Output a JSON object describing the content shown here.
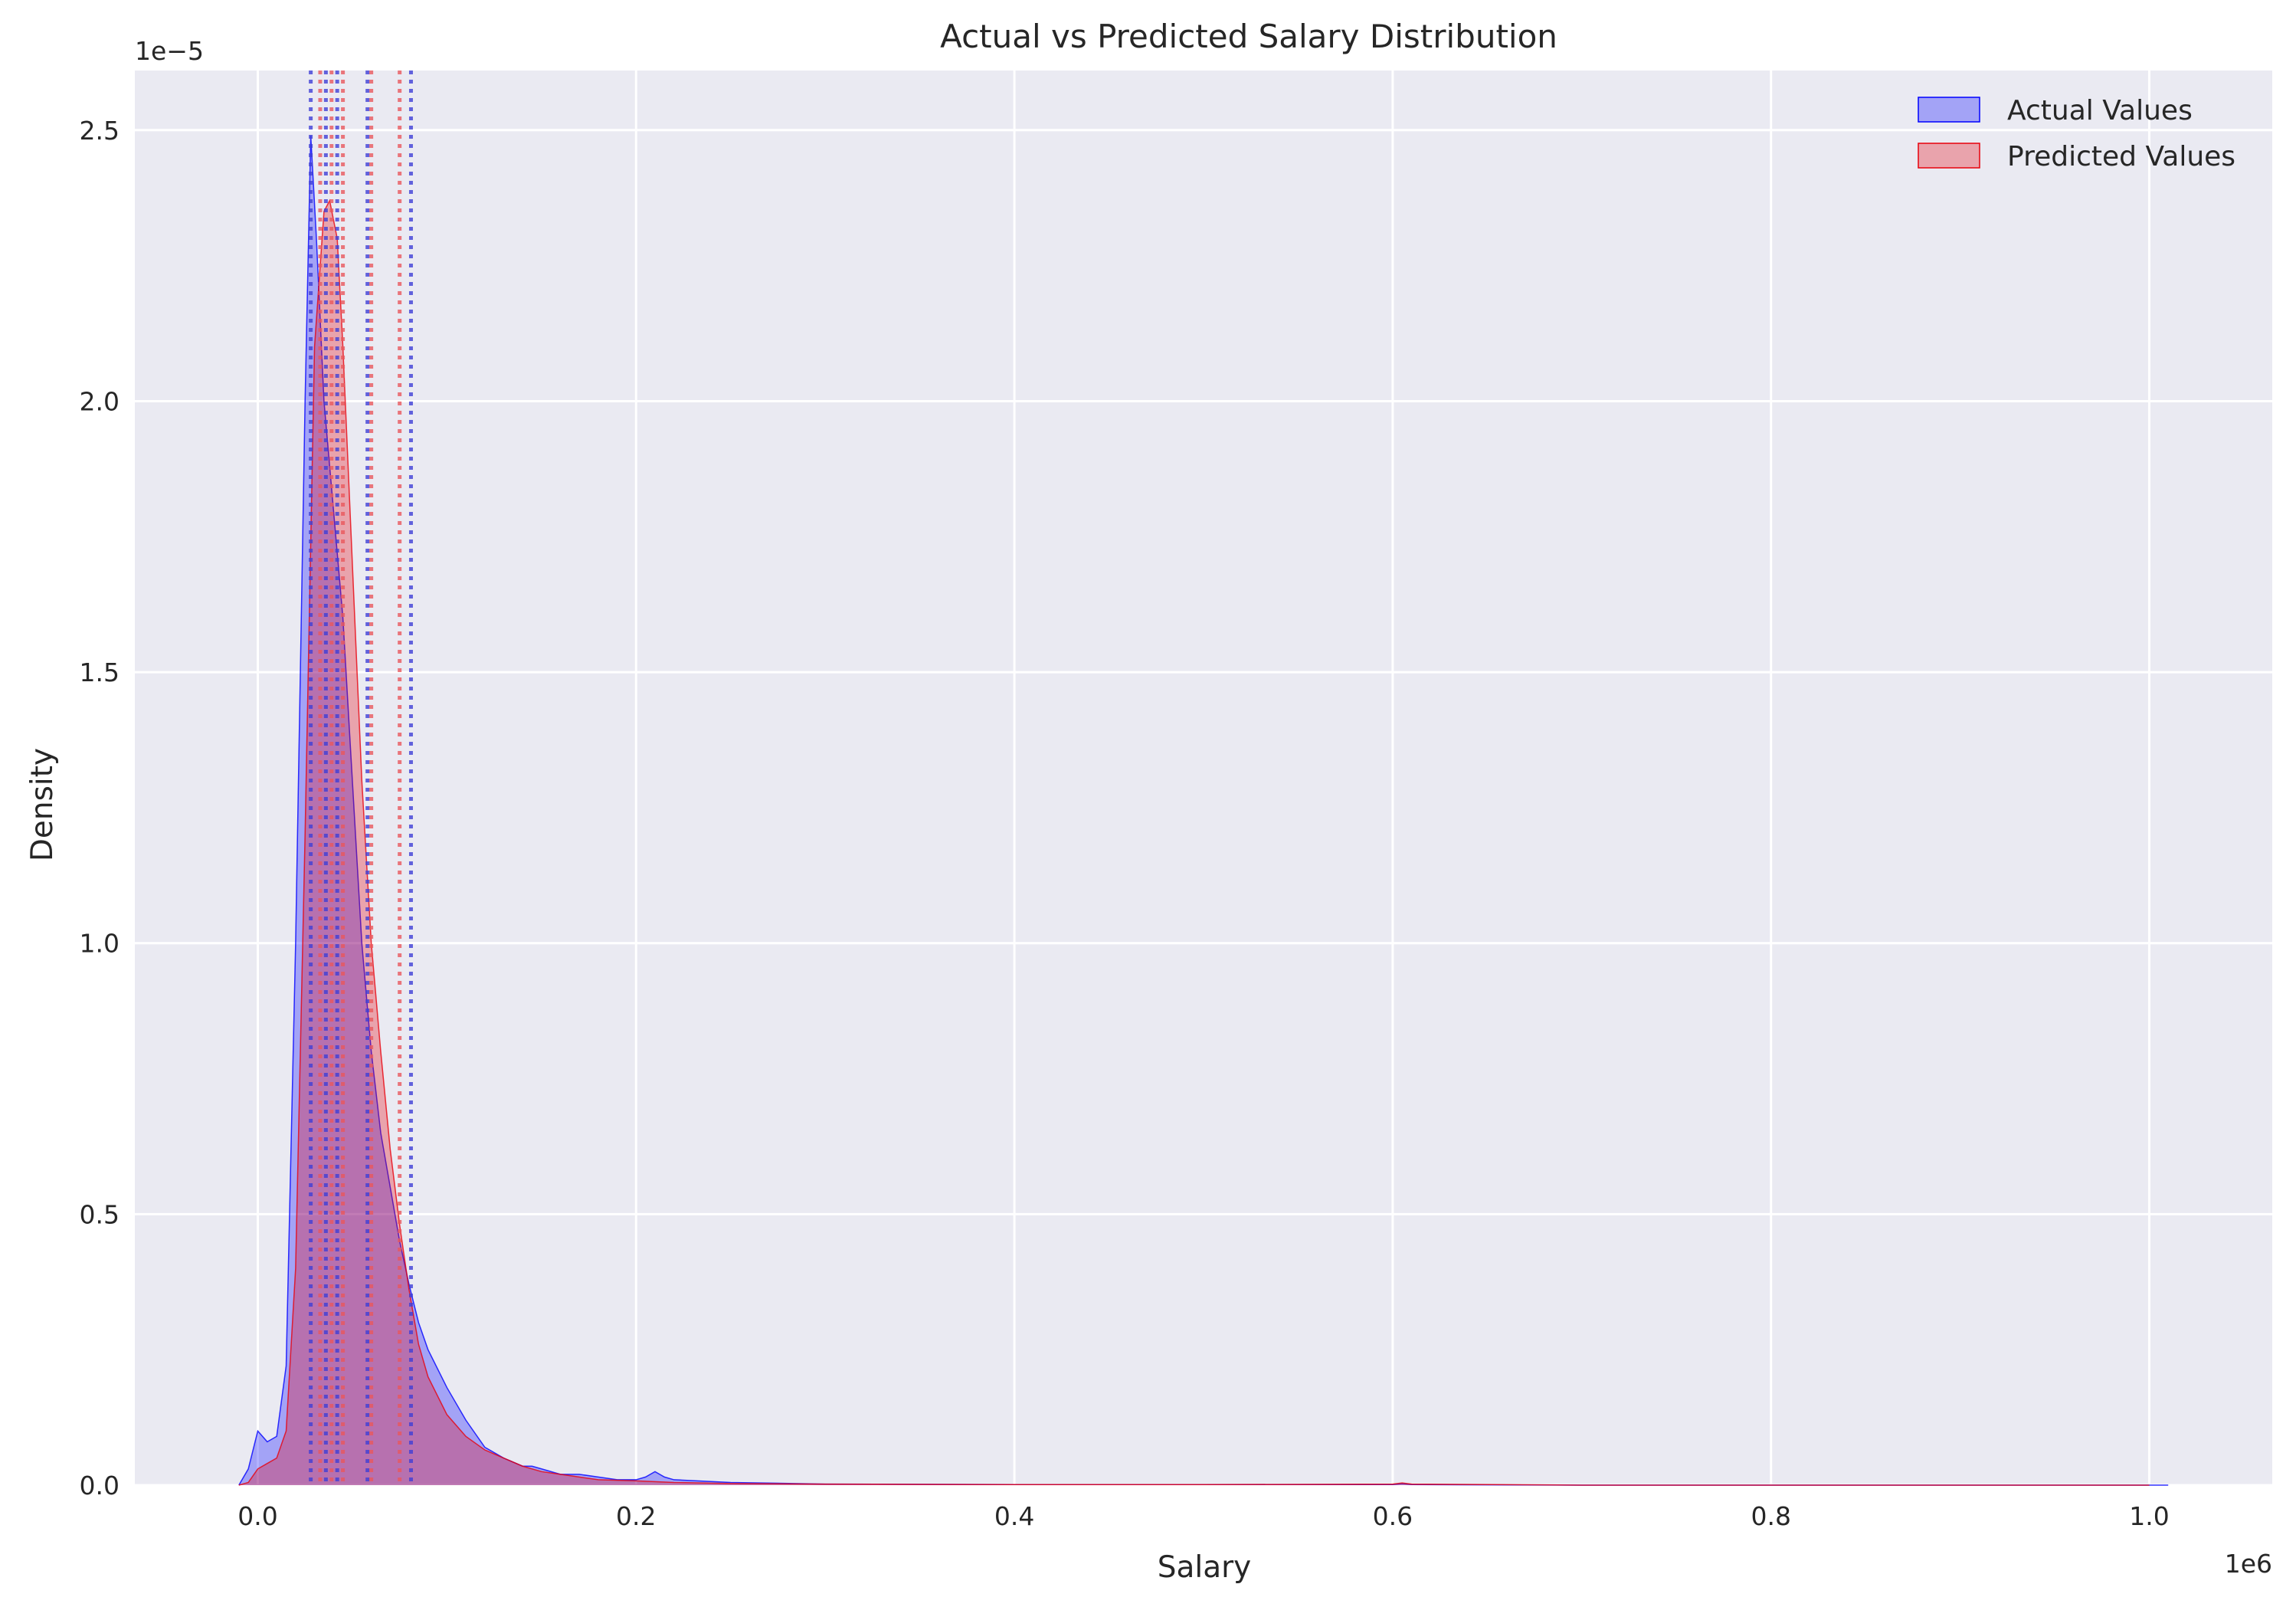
{
  "chart_data": {
    "type": "area",
    "title": "Actual vs Predicted Salary Distribution",
    "xlabel": "Salary",
    "ylabel": "Density",
    "x_offset_text": "1e6",
    "y_offset_text": "1e−5",
    "xlim": [
      -0.065,
      1.065
    ],
    "ylim": [
      0,
      2.61
    ],
    "x_scale_factor": 1000000,
    "y_scale_factor": 1e-05,
    "x_ticks": [
      0.0,
      0.2,
      0.4,
      0.6,
      0.8,
      1.0
    ],
    "x_tick_labels": [
      "0.0",
      "0.2",
      "0.4",
      "0.6",
      "0.8",
      "1.0"
    ],
    "y_ticks": [
      0.0,
      0.5,
      1.0,
      1.5,
      2.0,
      2.5
    ],
    "y_tick_labels": [
      "0.0",
      "0.5",
      "1.0",
      "1.5",
      "2.0",
      "2.5"
    ],
    "grid": true,
    "legend_position": "top-right",
    "series": [
      {
        "name": "Actual Values",
        "color": "#0000ff",
        "fill": "#b2b1f2",
        "x": [
          -0.01,
          -0.005,
          0.0,
          0.005,
          0.01,
          0.015,
          0.02,
          0.025,
          0.028,
          0.031,
          0.035,
          0.04,
          0.045,
          0.05,
          0.055,
          0.06,
          0.065,
          0.07,
          0.075,
          0.08,
          0.085,
          0.09,
          0.1,
          0.11,
          0.12,
          0.13,
          0.14,
          0.145,
          0.15,
          0.16,
          0.17,
          0.18,
          0.19,
          0.2,
          0.205,
          0.21,
          0.215,
          0.22,
          0.25,
          0.3,
          0.4,
          0.5,
          0.6,
          0.605,
          0.61,
          0.7,
          0.8,
          0.9,
          1.0,
          1.01
        ],
        "y": [
          0.0,
          0.03,
          0.1,
          0.08,
          0.09,
          0.22,
          1.0,
          2.0,
          2.49,
          2.3,
          2.0,
          1.8,
          1.6,
          1.3,
          1.0,
          0.8,
          0.65,
          0.55,
          0.45,
          0.37,
          0.3,
          0.25,
          0.18,
          0.12,
          0.07,
          0.05,
          0.035,
          0.035,
          0.03,
          0.02,
          0.02,
          0.015,
          0.01,
          0.01,
          0.015,
          0.025,
          0.015,
          0.01,
          0.005,
          0.002,
          0.001,
          0.001,
          0.001,
          0.003,
          0.001,
          0.0,
          0.0,
          0.0,
          0.0,
          0.0
        ]
      },
      {
        "name": "Predicted Values",
        "color": "#e8000b",
        "fill": "#f2a5a8",
        "x": [
          -0.01,
          -0.005,
          0.0,
          0.005,
          0.01,
          0.015,
          0.02,
          0.025,
          0.03,
          0.035,
          0.038,
          0.042,
          0.045,
          0.05,
          0.055,
          0.06,
          0.065,
          0.07,
          0.075,
          0.08,
          0.085,
          0.09,
          0.1,
          0.11,
          0.12,
          0.13,
          0.14,
          0.15,
          0.16,
          0.17,
          0.18,
          0.2,
          0.22,
          0.25,
          0.3,
          0.4,
          0.5,
          0.6,
          0.605,
          0.61,
          0.7,
          0.8,
          0.9,
          1.0
        ],
        "y": [
          0.0,
          0.005,
          0.03,
          0.04,
          0.05,
          0.1,
          0.4,
          1.2,
          2.1,
          2.35,
          2.37,
          2.3,
          2.1,
          1.7,
          1.3,
          1.0,
          0.8,
          0.62,
          0.48,
          0.36,
          0.26,
          0.2,
          0.13,
          0.09,
          0.065,
          0.05,
          0.035,
          0.025,
          0.02,
          0.015,
          0.01,
          0.008,
          0.005,
          0.003,
          0.002,
          0.001,
          0.001,
          0.002,
          0.004,
          0.002,
          0.0,
          0.0,
          0.0,
          0.0
        ]
      }
    ],
    "vertical_lines": [
      {
        "series": "Actual Values",
        "color": "#3f3fd6",
        "x": [
          0.028,
          0.042,
          0.058,
          0.081
        ]
      },
      {
        "series": "Predicted Values",
        "color": "#e8575c",
        "x": [
          0.033,
          0.045,
          0.06,
          0.075
        ]
      },
      {
        "series": "Actual Values",
        "color": "#3f3fd6",
        "x": [
          0.036
        ]
      },
      {
        "series": "Predicted Values",
        "color": "#e8575c",
        "x": [
          0.039
        ]
      }
    ]
  }
}
